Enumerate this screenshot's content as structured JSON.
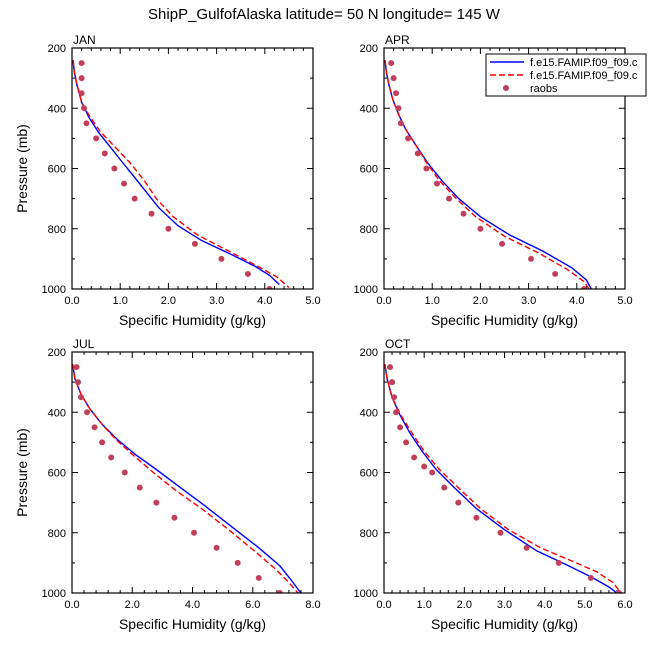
{
  "figure": {
    "title": "ShipP_GulfofAlaska  latitude= 50 N longitude= 145 W"
  },
  "legend": {
    "placement": "top-right (in APR panel)",
    "entries": [
      {
        "label": "f.e15.FAMIP.f09_f09.c",
        "style": "solid-line",
        "color": "#0000ff"
      },
      {
        "label": "f.e15.FAMIP.f09_f09.c",
        "style": "dashed-line",
        "color": "#ff0000"
      },
      {
        "label": "raobs",
        "style": "dot",
        "color": "#c0405c"
      }
    ]
  },
  "chart_data": [
    {
      "type": "line",
      "panel_label": "JAN",
      "xlabel": "Specific Humidity (g/kg)",
      "ylabel": "Pressure (mb)",
      "xlim": [
        0,
        5
      ],
      "ylim": [
        200,
        1000
      ],
      "y_reversed": true,
      "xticks": [
        "0.0",
        "1.0",
        "2.0",
        "3.0",
        "4.0",
        "5.0"
      ],
      "yticks": [
        "200",
        "400",
        "600",
        "800",
        "1000"
      ],
      "series": [
        {
          "style": "solid",
          "color": "#0000ff",
          "x": [
            0.02,
            0.05,
            0.1,
            0.2,
            0.35,
            0.55,
            0.8,
            1.05,
            1.3,
            1.55,
            1.8,
            2.2,
            2.7,
            3.3,
            3.8,
            4.1,
            4.3
          ],
          "y": [
            240,
            280,
            320,
            380,
            430,
            480,
            530,
            580,
            630,
            680,
            730,
            790,
            840,
            885,
            925,
            955,
            985
          ]
        },
        {
          "style": "dashed",
          "color": "#ff0000",
          "x": [
            0.02,
            0.05,
            0.1,
            0.2,
            0.38,
            0.6,
            0.9,
            1.2,
            1.5,
            1.75,
            2.1,
            2.6,
            3.2,
            3.8,
            4.25,
            4.5
          ],
          "y": [
            240,
            280,
            320,
            380,
            430,
            480,
            530,
            580,
            640,
            700,
            760,
            820,
            870,
            920,
            960,
            995
          ]
        },
        {
          "style": "dots",
          "color": "#c0405c",
          "x": [
            0.2,
            0.2,
            0.2,
            0.25,
            0.3,
            0.5,
            0.68,
            0.88,
            1.08,
            1.3,
            1.65,
            2.0,
            2.55,
            3.1,
            3.65,
            4.1
          ],
          "y": [
            250,
            300,
            350,
            400,
            450,
            500,
            550,
            600,
            650,
            700,
            750,
            800,
            850,
            900,
            950,
            1000
          ]
        }
      ]
    },
    {
      "type": "line",
      "panel_label": "APR",
      "xlabel": "Specific Humidity (g/kg)",
      "ylabel": "",
      "xlim": [
        0,
        5
      ],
      "ylim": [
        200,
        1000
      ],
      "y_reversed": true,
      "xticks": [
        "0.0",
        "1.0",
        "2.0",
        "3.0",
        "4.0",
        "5.0"
      ],
      "yticks": [
        "200",
        "400",
        "600",
        "800",
        "1000"
      ],
      "series": [
        {
          "style": "solid",
          "color": "#0000ff",
          "x": [
            0.02,
            0.05,
            0.1,
            0.18,
            0.3,
            0.45,
            0.65,
            0.9,
            1.2,
            1.55,
            2.0,
            2.6,
            3.3,
            3.9,
            4.2,
            4.3
          ],
          "y": [
            240,
            280,
            320,
            370,
            420,
            470,
            520,
            580,
            640,
            700,
            760,
            820,
            875,
            930,
            970,
            1000
          ]
        },
        {
          "style": "dashed",
          "color": "#ff0000",
          "x": [
            0.02,
            0.05,
            0.1,
            0.18,
            0.3,
            0.45,
            0.65,
            0.88,
            1.15,
            1.5,
            1.9,
            2.5,
            3.2,
            3.8,
            4.15,
            4.25
          ],
          "y": [
            240,
            280,
            320,
            370,
            420,
            470,
            520,
            580,
            640,
            700,
            760,
            825,
            880,
            935,
            975,
            1000
          ]
        },
        {
          "style": "dots",
          "color": "#c0405c",
          "x": [
            0.15,
            0.2,
            0.25,
            0.3,
            0.35,
            0.5,
            0.7,
            0.88,
            1.1,
            1.35,
            1.65,
            2.0,
            2.45,
            3.05,
            3.55,
            4.15
          ],
          "y": [
            250,
            300,
            350,
            400,
            450,
            500,
            550,
            600,
            650,
            700,
            750,
            800,
            850,
            900,
            950,
            1000
          ]
        }
      ]
    },
    {
      "type": "line",
      "panel_label": "JUL",
      "xlabel": "Specific Humidity (g/kg)",
      "ylabel": "Pressure (mb)",
      "xlim": [
        0,
        8
      ],
      "ylim": [
        200,
        1000
      ],
      "y_reversed": true,
      "xticks": [
        "0.0",
        "2.0",
        "4.0",
        "6.0",
        "8.0"
      ],
      "yticks": [
        "200",
        "400",
        "600",
        "800",
        "1000"
      ],
      "series": [
        {
          "style": "solid",
          "color": "#0000ff",
          "x": [
            0.02,
            0.1,
            0.3,
            0.6,
            1.0,
            1.5,
            2.1,
            2.8,
            3.6,
            4.4,
            5.3,
            6.2,
            6.9,
            7.3,
            7.6
          ],
          "y": [
            240,
            290,
            340,
            390,
            440,
            490,
            540,
            590,
            650,
            710,
            780,
            850,
            910,
            960,
            1000
          ]
        },
        {
          "style": "dashed",
          "color": "#ff0000",
          "x": [
            0.02,
            0.1,
            0.3,
            0.6,
            1.0,
            1.45,
            2.0,
            2.7,
            3.45,
            4.3,
            5.2,
            6.05,
            6.75,
            7.2,
            7.5
          ],
          "y": [
            240,
            290,
            340,
            390,
            440,
            490,
            540,
            600,
            660,
            720,
            790,
            860,
            920,
            965,
            1000
          ]
        },
        {
          "style": "dots",
          "color": "#c0405c",
          "x": [
            0.15,
            0.2,
            0.3,
            0.5,
            0.75,
            1.0,
            1.3,
            1.75,
            2.25,
            2.8,
            3.4,
            4.05,
            4.8,
            5.5,
            6.2,
            6.9
          ],
          "y": [
            250,
            300,
            350,
            400,
            450,
            500,
            550,
            600,
            650,
            700,
            750,
            800,
            850,
            900,
            950,
            1000
          ]
        }
      ]
    },
    {
      "type": "line",
      "panel_label": "OCT",
      "xlabel": "Specific Humidity (g/kg)",
      "ylabel": "",
      "xlim": [
        0,
        6
      ],
      "ylim": [
        200,
        1000
      ],
      "y_reversed": true,
      "xticks": [
        "0.0",
        "1.0",
        "2.0",
        "3.0",
        "4.0",
        "5.0",
        "6.0"
      ],
      "yticks": [
        "200",
        "400",
        "600",
        "800",
        "1000"
      ],
      "series": [
        {
          "style": "solid",
          "color": "#0000ff",
          "x": [
            0.02,
            0.08,
            0.2,
            0.4,
            0.65,
            0.95,
            1.3,
            1.75,
            2.3,
            3.0,
            3.8,
            4.6,
            5.2,
            5.6,
            5.8
          ],
          "y": [
            240,
            290,
            350,
            410,
            470,
            530,
            590,
            650,
            720,
            790,
            860,
            910,
            950,
            980,
            1000
          ]
        },
        {
          "style": "dashed",
          "color": "#ff0000",
          "x": [
            0.02,
            0.08,
            0.2,
            0.42,
            0.7,
            1.0,
            1.38,
            1.85,
            2.4,
            3.1,
            3.9,
            4.7,
            5.3,
            5.7,
            5.9
          ],
          "y": [
            240,
            290,
            350,
            410,
            470,
            530,
            590,
            650,
            720,
            790,
            850,
            895,
            930,
            965,
            1000
          ]
        },
        {
          "style": "dots",
          "color": "#c0405c",
          "x": [
            0.15,
            0.2,
            0.25,
            0.3,
            0.4,
            0.55,
            0.75,
            1.0,
            1.2,
            1.5,
            1.85,
            2.3,
            2.9,
            3.55,
            4.35,
            5.15,
            5.85
          ],
          "y": [
            250,
            300,
            350,
            400,
            450,
            500,
            550,
            580,
            600,
            650,
            700,
            750,
            800,
            850,
            900,
            950,
            1000
          ]
        }
      ]
    }
  ]
}
